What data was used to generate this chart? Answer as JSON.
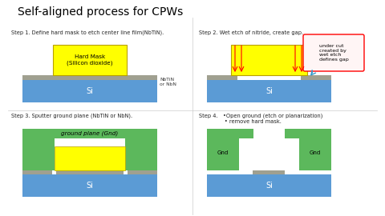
{
  "title": "Self-aligned process for CPWs",
  "title_fontsize": 10,
  "si_color": "#5b9bd5",
  "nbtin_color": "#a0a090",
  "hardmask_color": "#ffff00",
  "hardmask_border": "#b8a000",
  "green_color": "#5cb85c",
  "step1_label": "Step 1. Define hard mask to etch center line film(NbTiN).",
  "step1_hm_text": "Hard Mask\n(Silicon dioxide)",
  "step1_nbtin_label": "NbTiN\nor NbN",
  "step1_si_label": "Si",
  "step2_label": "Step 2. Wet etch of nitride, create gap.",
  "step2_annotation": "under cut\ncreated by\nwet etch\ndefines gap",
  "step2_si_label": "Si",
  "step3_label": "Step 3. Sputter ground plane (NbTiN or NbN).",
  "step3_gnd_label": "ground plane (Gnd)",
  "step3_si_label": "Si",
  "step4_label": "Step 4.   •Open ground (etch or planarization)\n               • remove hard mask.",
  "step4_gnd_label": "Gnd",
  "step4_si_label": "Si"
}
